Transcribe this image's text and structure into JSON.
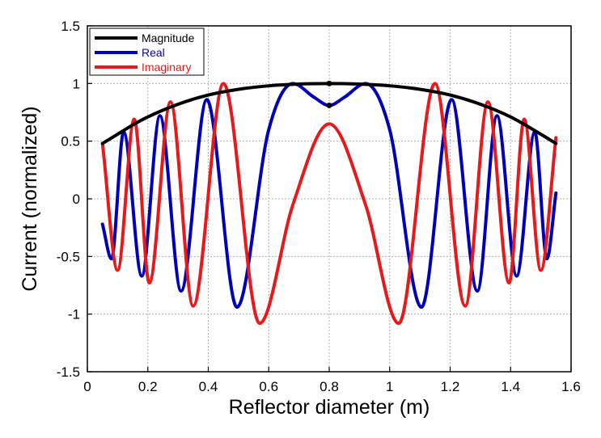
{
  "chart_data": {
    "type": "line",
    "xlabel": "Reflector diameter (m)",
    "ylabel": "Current (normalized)",
    "xlim": [
      0,
      1.6
    ],
    "ylim": [
      -1.5,
      1.5
    ],
    "x_ticks": [
      "0",
      "0.2",
      "0.4",
      "0.6",
      "0.8",
      "1",
      "1.2",
      "1.4",
      "1.6"
    ],
    "y_ticks": [
      "1.5",
      "1",
      "0.5",
      "0",
      "-0.5",
      "-1",
      "-1.5"
    ],
    "grid": true,
    "legend_position": "top-left",
    "series": [
      {
        "name": "Magnitude",
        "color": "#000000",
        "x": [
          0.05,
          0.1,
          0.15,
          0.2,
          0.3,
          0.4,
          0.5,
          0.6,
          0.7,
          0.8,
          0.9,
          1.0,
          1.1,
          1.2,
          1.3,
          1.4,
          1.5,
          1.55
        ],
        "y": [
          0.48,
          0.56,
          0.64,
          0.71,
          0.82,
          0.9,
          0.95,
          0.98,
          0.995,
          1.0,
          0.995,
          0.98,
          0.95,
          0.9,
          0.82,
          0.71,
          0.56,
          0.48
        ]
      },
      {
        "name": "Real",
        "color": "#0000bb",
        "x": [
          0.05,
          0.08,
          0.12,
          0.18,
          0.24,
          0.31,
          0.395,
          0.495,
          0.6,
          0.68,
          0.75,
          0.8,
          0.85,
          0.92,
          1.0,
          1.105,
          1.205,
          1.29,
          1.355,
          1.42,
          1.48,
          1.52,
          1.55
        ],
        "y": [
          -0.22,
          -0.52,
          0.58,
          -0.67,
          0.72,
          -0.8,
          0.86,
          -0.94,
          0.6,
          1.0,
          0.88,
          0.81,
          0.88,
          1.0,
          0.6,
          -0.94,
          0.86,
          -0.8,
          0.72,
          -0.67,
          0.58,
          -0.52,
          0.05
        ]
      },
      {
        "name": "Imaginary",
        "color": "#e8191b",
        "x": [
          0.05,
          0.1,
          0.155,
          0.205,
          0.275,
          0.35,
          0.45,
          0.57,
          0.68,
          0.8,
          0.92,
          1.03,
          1.15,
          1.25,
          1.325,
          1.395,
          1.445,
          1.5,
          1.55
        ],
        "y": [
          0.48,
          -0.62,
          0.69,
          -0.73,
          0.84,
          -0.93,
          1.0,
          -1.08,
          -0.05,
          0.65,
          -0.05,
          -1.08,
          1.0,
          -0.93,
          0.84,
          -0.73,
          0.69,
          -0.62,
          0.53
        ]
      }
    ]
  }
}
